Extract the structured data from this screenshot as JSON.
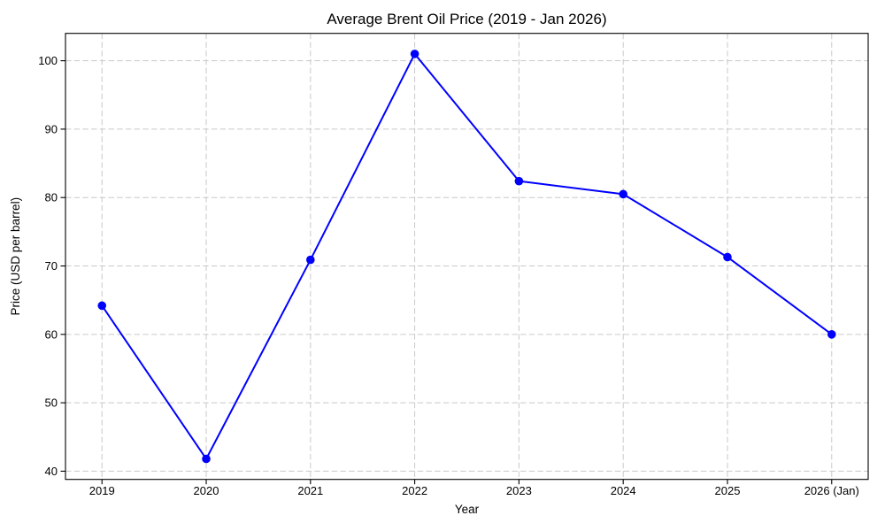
{
  "chart_data": {
    "type": "line",
    "title": "Average Brent Oil Price (2019 - Jan 2026)",
    "xlabel": "Year",
    "ylabel": "Price (USD per barrel)",
    "categories": [
      "2019",
      "2020",
      "2021",
      "2022",
      "2023",
      "2024",
      "2025",
      "2026 (Jan)"
    ],
    "values": [
      64.2,
      41.8,
      70.9,
      101.0,
      82.4,
      80.5,
      71.3,
      60.0
    ],
    "yticks": [
      40,
      50,
      60,
      70,
      80,
      90,
      100
    ],
    "ylim": [
      38.8,
      104.0
    ],
    "xlim": [
      -0.35,
      7.35
    ],
    "grid": true,
    "grid_style": "dashed",
    "legend_position": "none",
    "line_color": "#0000ff",
    "marker": "circle",
    "grid_color": "#c9c9c9",
    "spine_color": "#000000",
    "background_color": "#ffffff"
  }
}
